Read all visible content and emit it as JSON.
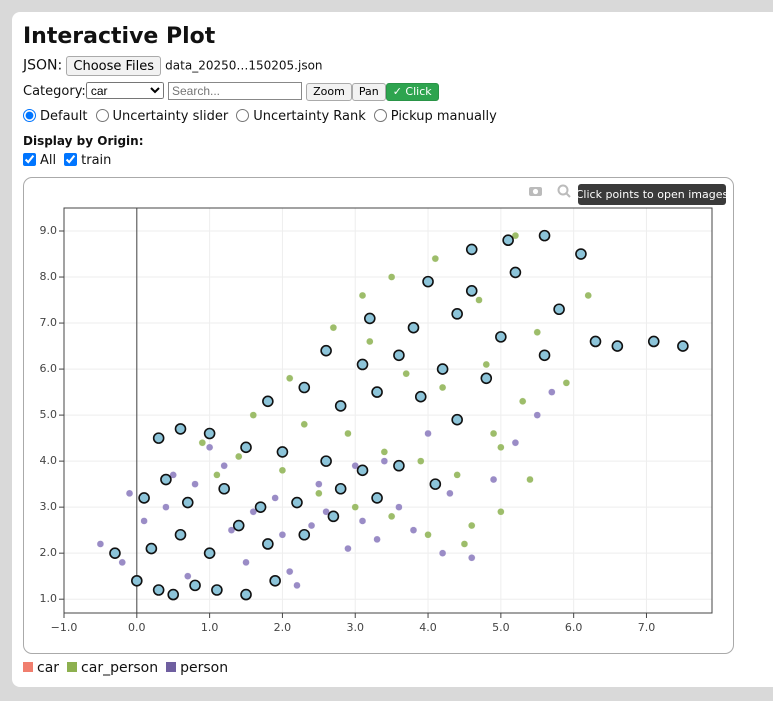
{
  "header": {
    "title": "Interactive Plot"
  },
  "controls": {
    "json_label": "JSON:",
    "file_button": "Choose Files",
    "file_name": "data_20250…150205.json",
    "category_label": "Category:",
    "category_value": "car",
    "search_placeholder": "Search...",
    "buttons": [
      "Zoom",
      "Pan",
      "✓ Click"
    ],
    "modes": [
      "Default",
      "Uncertainty slider",
      "Uncertainty Rank",
      "Pickup manually"
    ],
    "selected_mode": 0,
    "origin_title": "Display by Origin:",
    "origins": [
      "All",
      "train"
    ],
    "origins_checked": [
      true,
      true
    ]
  },
  "tooltip": "Click points to open images",
  "chart_data": {
    "type": "scatter",
    "xlim": [
      -1.0,
      7.9
    ],
    "ylim": [
      0.7,
      9.5
    ],
    "xticks": [
      {
        "value": -1,
        "label": "−1.0"
      },
      {
        "value": 0,
        "label": "0.0"
      },
      {
        "value": 1,
        "label": "1.0"
      },
      {
        "value": 2,
        "label": "2.0"
      },
      {
        "value": 3,
        "label": "3.0"
      },
      {
        "value": 4,
        "label": "4.0"
      },
      {
        "value": 5,
        "label": "5.0"
      },
      {
        "value": 6,
        "label": "6.0"
      },
      {
        "value": 7,
        "label": "7.0"
      }
    ],
    "yticks": [
      {
        "value": 1,
        "label": "1.0"
      },
      {
        "value": 2,
        "label": "2.0"
      },
      {
        "value": 3,
        "label": "3.0"
      },
      {
        "value": 4,
        "label": "4.0"
      },
      {
        "value": 5,
        "label": "5.0"
      },
      {
        "value": 6,
        "label": "6.0"
      },
      {
        "value": 7,
        "label": "7.0"
      },
      {
        "value": 8,
        "label": "8.0"
      },
      {
        "value": 9,
        "label": "9.0"
      }
    ],
    "grid": true,
    "zero_line": true,
    "series": [
      {
        "name": "person",
        "color": "#6f5fa0",
        "marker_color": "#9a8cc6",
        "marker_size": 3.5,
        "x": [
          -0.5,
          -0.2,
          0.1,
          0.4,
          0.8,
          1.2,
          1.6,
          2.0,
          2.4,
          2.9,
          3.3,
          3.8,
          4.2,
          4.6,
          -0.1,
          0.5,
          1.0,
          1.5,
          2.1,
          2.6,
          3.1,
          3.6,
          4.3,
          4.9,
          0.7,
          1.3,
          1.9,
          2.5,
          3.4,
          4.0,
          5.2,
          5.5,
          5.7,
          2.2,
          3.0
        ],
        "values": [
          2.2,
          1.8,
          2.7,
          3.0,
          3.5,
          3.9,
          2.9,
          2.4,
          2.6,
          2.1,
          2.3,
          2.5,
          2.0,
          1.9,
          3.3,
          3.7,
          4.3,
          1.8,
          1.6,
          2.9,
          2.7,
          3.0,
          3.3,
          3.6,
          1.5,
          2.5,
          3.2,
          3.5,
          4.0,
          4.6,
          4.4,
          5.0,
          5.5,
          1.3,
          3.9
        ]
      },
      {
        "name": "car_person",
        "color": "#8db04f",
        "marker_color": "#9dbd6a",
        "marker_size": 3.5,
        "x": [
          0.9,
          1.4,
          2.0,
          2.5,
          3.0,
          3.5,
          4.0,
          4.5,
          5.0,
          5.4,
          1.6,
          2.3,
          2.9,
          3.4,
          3.9,
          4.4,
          4.9,
          5.3,
          5.9,
          2.7,
          3.2,
          3.7,
          4.2,
          4.8,
          5.5,
          3.5,
          4.1,
          4.7,
          5.2,
          6.2,
          1.1,
          2.1,
          3.1,
          4.6,
          5.0
        ],
        "values": [
          4.4,
          4.1,
          3.8,
          3.3,
          3.0,
          2.8,
          2.4,
          2.2,
          2.9,
          3.6,
          5.0,
          4.8,
          4.6,
          4.2,
          4.0,
          3.7,
          4.6,
          5.3,
          5.7,
          6.9,
          6.6,
          5.9,
          5.6,
          6.1,
          6.8,
          8.0,
          8.4,
          7.5,
          8.9,
          7.6,
          3.7,
          5.8,
          7.6,
          2.6,
          4.3
        ]
      },
      {
        "name": "car",
        "color": "#f07e6e",
        "marker_color": "#8cc4d9",
        "marker_outline": "#111111",
        "marker_size": 5,
        "x": [
          -0.3,
          0.0,
          0.3,
          0.5,
          0.8,
          1.1,
          1.5,
          1.9,
          0.2,
          0.6,
          1.0,
          1.4,
          1.8,
          2.3,
          2.7,
          0.1,
          0.4,
          0.7,
          1.2,
          1.7,
          2.2,
          2.8,
          3.3,
          0.3,
          0.6,
          1.0,
          1.5,
          2.0,
          2.6,
          3.1,
          3.6,
          4.1,
          1.8,
          2.3,
          2.8,
          3.3,
          3.9,
          4.4,
          2.6,
          3.1,
          3.6,
          4.2,
          4.8,
          3.2,
          3.8,
          4.4,
          5.0,
          5.6,
          4.0,
          4.6,
          5.2,
          5.8,
          6.3,
          4.6,
          5.1,
          5.6,
          6.1,
          6.6,
          7.1,
          7.5
        ],
        "values": [
          2.0,
          1.4,
          1.2,
          1.1,
          1.3,
          1.2,
          1.1,
          1.4,
          2.1,
          2.4,
          2.0,
          2.6,
          2.2,
          2.4,
          2.8,
          3.2,
          3.6,
          3.1,
          3.4,
          3.0,
          3.1,
          3.4,
          3.2,
          4.5,
          4.7,
          4.6,
          4.3,
          4.2,
          4.0,
          3.8,
          3.9,
          3.5,
          5.3,
          5.6,
          5.2,
          5.5,
          5.4,
          4.9,
          6.4,
          6.1,
          6.3,
          6.0,
          5.8,
          7.1,
          6.9,
          7.2,
          6.7,
          6.3,
          7.9,
          7.7,
          8.1,
          7.3,
          6.6,
          8.6,
          8.8,
          8.9,
          8.5,
          6.5,
          6.6,
          6.5
        ]
      }
    ]
  }
}
